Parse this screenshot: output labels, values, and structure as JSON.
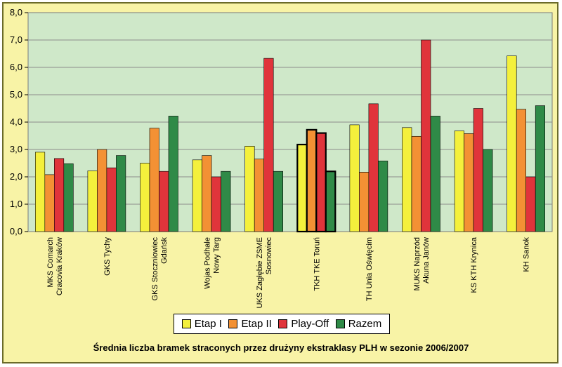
{
  "chart_data": {
    "type": "bar",
    "title": "Średnia liczba bramek straconych przez drużyny ekstraklasy PLH w sezonie 2006/2007",
    "xlabel": "",
    "ylabel": "",
    "ylim": [
      0,
      8
    ],
    "yticks": [
      "0,0",
      "1,0",
      "2,0",
      "3,0",
      "4,0",
      "5,0",
      "6,0",
      "7,0",
      "8,0"
    ],
    "grid": true,
    "legend_position": "bottom",
    "highlighted_category": "TKH TKE Toruń",
    "categories": [
      [
        "MKS Comarch",
        "Cracovia Kraków"
      ],
      [
        "GKS Tychy"
      ],
      [
        "GKS Stoczniowiec",
        "Gdańsk"
      ],
      [
        "Wojas Podhale",
        "Nowy Targ"
      ],
      [
        "UKS Zagłębie ZSME",
        "Sosnowiec"
      ],
      [
        "TKH TKE Toruń"
      ],
      [
        "TH Unia Oświęcim"
      ],
      [
        "MUKS Naprzód",
        "Akuna Janów"
      ],
      [
        "KS KTH Krynica"
      ],
      [
        "KH Sanok"
      ]
    ],
    "series": [
      {
        "name": "Etap I",
        "color": "#f4f03c",
        "values": [
          2.9,
          2.22,
          2.5,
          2.62,
          3.12,
          3.18,
          3.9,
          3.8,
          3.68,
          6.42
        ]
      },
      {
        "name": "Etap II",
        "color": "#f39134",
        "values": [
          2.08,
          3.0,
          3.78,
          2.78,
          2.65,
          3.72,
          2.17,
          3.48,
          3.58,
          4.47
        ]
      },
      {
        "name": "Play-Off",
        "color": "#e0343b",
        "values": [
          2.67,
          2.33,
          2.2,
          2.0,
          6.33,
          3.6,
          4.67,
          7.0,
          4.5,
          2.0
        ]
      },
      {
        "name": "Razem",
        "color": "#2f8a47",
        "values": [
          2.48,
          2.78,
          4.22,
          2.2,
          2.2,
          2.2,
          2.58,
          4.22,
          3.0,
          4.6
        ]
      }
    ]
  }
}
